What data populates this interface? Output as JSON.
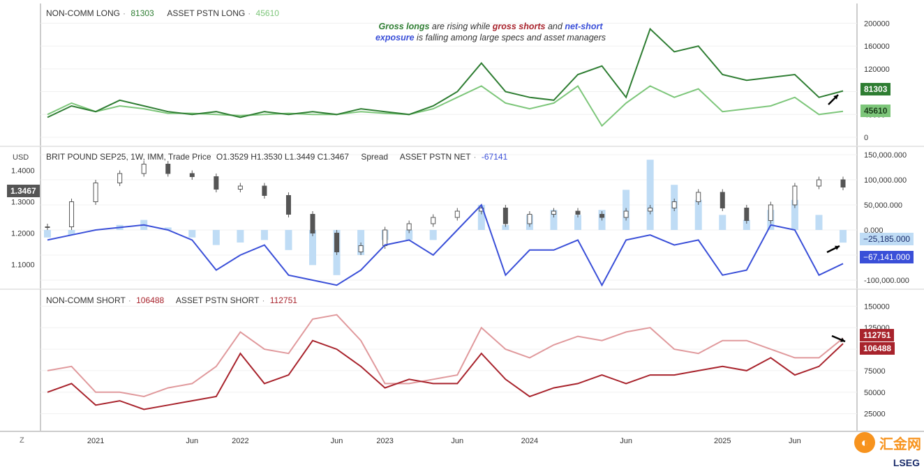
{
  "colors": {
    "long_noncomm": "#2e7d32",
    "long_asset": "#7dc67a",
    "short_noncomm": "#a8232c",
    "short_asset": "#e0999c",
    "net_line": "#3a4fd8",
    "net_bars": "#bfdcf5",
    "candle": "#555555"
  },
  "panels": {
    "top": {
      "legend_a_label": "NON-COMM LONG",
      "legend_a_value": "81303",
      "legend_b_label": "ASSET PSTN LONG",
      "legend_b_value": "45610",
      "badge_a": "81303",
      "badge_b": "45610"
    },
    "middle": {
      "currency": "USD",
      "title": "BRIT POUND SEP25, 1W, IMM, Trade Price",
      "ohlc": "O1.3529  H1.3530  L1.3449  C1.3467",
      "spread": "Spread",
      "net_label": "ASSET PSTN NET",
      "net_value": "-67141",
      "price_badge": "1.3467",
      "badge_net_bars": "−25,185.000",
      "badge_net_line": "−67,141.000"
    },
    "bottom": {
      "legend_a_label": "NON-COMM SHORT",
      "legend_a_value": "106488",
      "legend_b_label": "ASSET PSTN SHORT",
      "legend_b_value": "112751",
      "badge_a": "112751",
      "badge_b": "106488"
    }
  },
  "annotation": {
    "p1": "Gross longs",
    "p2": " are rising while ",
    "p3": "gross shorts",
    "p4": " and ",
    "p5": "net-short",
    "p6": "exposure",
    "p7": " is falling among large specs and asset managers"
  },
  "z_button": "Z",
  "watermark": "汇金网",
  "source": "LSEG",
  "chart_data": [
    {
      "type": "line",
      "x": [
        "2020-09",
        "2020-11",
        "2021-01",
        "2021-03",
        "2021-05",
        "2021-07",
        "2021-09",
        "2021-11",
        "2022-01",
        "2022-03",
        "2022-05",
        "2022-07",
        "2022-09",
        "2022-11",
        "2023-01",
        "2023-03",
        "2023-05",
        "2023-06",
        "2023-08",
        "2023-10",
        "2023-12",
        "2024-02",
        "2024-04",
        "2024-05",
        "2024-06",
        "2024-07",
        "2024-08",
        "2024-10",
        "2024-12",
        "2025-02",
        "2025-04",
        "2025-06",
        "2025-07",
        "2025-08"
      ],
      "series": [
        {
          "name": "NON-COMM LONG",
          "values": [
            35000,
            55000,
            45000,
            65000,
            55000,
            45000,
            40000,
            45000,
            35000,
            45000,
            40000,
            45000,
            40000,
            50000,
            45000,
            40000,
            55000,
            80000,
            130000,
            80000,
            70000,
            65000,
            110000,
            125000,
            70000,
            190000,
            150000,
            160000,
            110000,
            100000,
            105000,
            110000,
            70000,
            81303
          ]
        },
        {
          "name": "ASSET PSTN LONG",
          "values": [
            40000,
            60000,
            45000,
            55000,
            50000,
            42000,
            42000,
            40000,
            38000,
            40000,
            42000,
            40000,
            40000,
            45000,
            42000,
            40000,
            50000,
            70000,
            90000,
            60000,
            50000,
            60000,
            90000,
            20000,
            60000,
            90000,
            70000,
            85000,
            45000,
            50000,
            55000,
            70000,
            40000,
            45610
          ]
        }
      ],
      "ylim": [
        0,
        220000
      ],
      "yticks": [
        0,
        40000,
        80000,
        120000,
        160000,
        200000
      ]
    },
    {
      "type": "line",
      "x": [
        "2020-09",
        "2020-11",
        "2021-01",
        "2021-03",
        "2021-05",
        "2021-07",
        "2021-09",
        "2021-11",
        "2022-01",
        "2022-03",
        "2022-05",
        "2022-07",
        "2022-09",
        "2022-11",
        "2023-01",
        "2023-03",
        "2023-05",
        "2023-06",
        "2023-08",
        "2023-10",
        "2023-12",
        "2024-02",
        "2024-04",
        "2024-05",
        "2024-06",
        "2024-07",
        "2024-08",
        "2024-10",
        "2024-12",
        "2025-02",
        "2025-04",
        "2025-06",
        "2025-07",
        "2025-08"
      ],
      "series": [
        {
          "name": "BRIT POUND SEP25 (close)",
          "values": [
            1.22,
            1.3,
            1.36,
            1.39,
            1.42,
            1.39,
            1.38,
            1.34,
            1.35,
            1.32,
            1.26,
            1.2,
            1.14,
            1.16,
            1.21,
            1.23,
            1.25,
            1.27,
            1.28,
            1.23,
            1.26,
            1.27,
            1.26,
            1.25,
            1.27,
            1.28,
            1.3,
            1.33,
            1.28,
            1.24,
            1.29,
            1.35,
            1.37,
            1.3467
          ]
        },
        {
          "name": "ASSET PSTN NET",
          "values": [
            -20000,
            -10000,
            0,
            5000,
            10000,
            0,
            -20000,
            -80000,
            -50000,
            -30000,
            -90000,
            -100000,
            -110000,
            -80000,
            -30000,
            -20000,
            -50000,
            0,
            50000,
            -90000,
            -40000,
            -40000,
            -20000,
            -110000,
            -20000,
            -10000,
            -30000,
            -20000,
            -90000,
            -80000,
            10000,
            0,
            -90000,
            -67141
          ]
        },
        {
          "name": "Spread",
          "values": [
            -15000,
            -10000,
            0,
            10000,
            20000,
            5000,
            -15000,
            -30000,
            -25000,
            -20000,
            -40000,
            -70000,
            -90000,
            -50000,
            -20000,
            -20000,
            -20000,
            0,
            50000,
            10000,
            30000,
            40000,
            30000,
            40000,
            80000,
            140000,
            90000,
            60000,
            30000,
            20000,
            40000,
            60000,
            30000,
            -25185
          ]
        }
      ],
      "ylim": [
        -100000,
        150000
      ],
      "yticks": [
        -100000,
        -50000,
        0,
        50000,
        100000,
        150000
      ],
      "price_ticks": [
        1.1,
        1.2,
        1.3,
        1.4
      ]
    },
    {
      "type": "line",
      "x": [
        "2020-09",
        "2020-11",
        "2021-01",
        "2021-03",
        "2021-05",
        "2021-07",
        "2021-09",
        "2021-11",
        "2022-01",
        "2022-03",
        "2022-05",
        "2022-07",
        "2022-09",
        "2022-11",
        "2023-01",
        "2023-03",
        "2023-05",
        "2023-06",
        "2023-08",
        "2023-10",
        "2023-12",
        "2024-02",
        "2024-04",
        "2024-05",
        "2024-06",
        "2024-07",
        "2024-08",
        "2024-10",
        "2024-12",
        "2025-02",
        "2025-04",
        "2025-06",
        "2025-07",
        "2025-08"
      ],
      "series": [
        {
          "name": "NON-COMM SHORT",
          "values": [
            50000,
            60000,
            35000,
            40000,
            30000,
            35000,
            40000,
            45000,
            95000,
            60000,
            70000,
            110000,
            100000,
            80000,
            55000,
            65000,
            60000,
            60000,
            95000,
            65000,
            45000,
            55000,
            60000,
            70000,
            60000,
            70000,
            70000,
            75000,
            80000,
            75000,
            90000,
            70000,
            80000,
            106488
          ]
        },
        {
          "name": "ASSET PSTN SHORT",
          "values": [
            75000,
            80000,
            50000,
            50000,
            45000,
            55000,
            60000,
            80000,
            120000,
            100000,
            95000,
            135000,
            140000,
            110000,
            60000,
            60000,
            65000,
            70000,
            125000,
            100000,
            90000,
            105000,
            115000,
            110000,
            120000,
            125000,
            100000,
            95000,
            110000,
            110000,
            100000,
            90000,
            90000,
            112751
          ]
        }
      ],
      "ylim": [
        15000,
        160000
      ],
      "yticks": [
        25000,
        50000,
        75000,
        100000,
        125000,
        150000
      ]
    }
  ],
  "x_axis": {
    "ticks": [
      "2021",
      "Jun",
      "2022",
      "Jun",
      "2023",
      "Jun",
      "2024",
      "Jun",
      "2025",
      "Jun"
    ]
  }
}
